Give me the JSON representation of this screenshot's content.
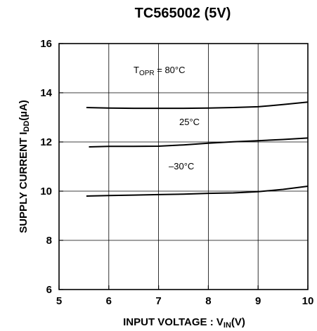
{
  "chart_data": {
    "type": "line",
    "title": "TC565002 (5V)",
    "xlabel": {
      "main": "INPUT VOLTAGE : V",
      "sub": "IN",
      "unit": "(V)"
    },
    "ylabel": {
      "main": "SUPPLY CURRENT I",
      "sub": "DD",
      "unit": "(µA)"
    },
    "xlim": [
      5,
      10
    ],
    "ylim": [
      6,
      16
    ],
    "xticks": [
      5,
      6,
      7,
      8,
      9,
      10
    ],
    "yticks": [
      6,
      8,
      10,
      12,
      14,
      16
    ],
    "grid": true,
    "annotations": {
      "topr": {
        "main": "T",
        "sub": "OPR",
        "rest": " = 80°C"
      },
      "t25": "25°C",
      "tm30": "–30°C"
    },
    "series": [
      {
        "x": [
          5.55,
          6.0,
          6.5,
          7.0,
          7.5,
          8.0,
          8.5,
          9.0,
          9.5,
          10.0
        ],
        "values": [
          13.4,
          13.38,
          13.37,
          13.37,
          13.37,
          13.38,
          13.4,
          13.43,
          13.52,
          13.62
        ]
      },
      {
        "x": [
          5.6,
          6.0,
          6.5,
          7.0,
          7.5,
          8.0,
          8.5,
          9.0,
          9.5,
          10.0
        ],
        "values": [
          11.8,
          11.82,
          11.82,
          11.83,
          11.88,
          11.95,
          12.01,
          12.05,
          12.1,
          12.16
        ]
      },
      {
        "x": [
          5.55,
          6.0,
          6.5,
          7.0,
          7.5,
          8.0,
          8.5,
          9.0,
          9.5,
          10.0
        ],
        "values": [
          9.8,
          9.82,
          9.84,
          9.86,
          9.88,
          9.91,
          9.93,
          9.98,
          10.07,
          10.2
        ]
      }
    ]
  }
}
